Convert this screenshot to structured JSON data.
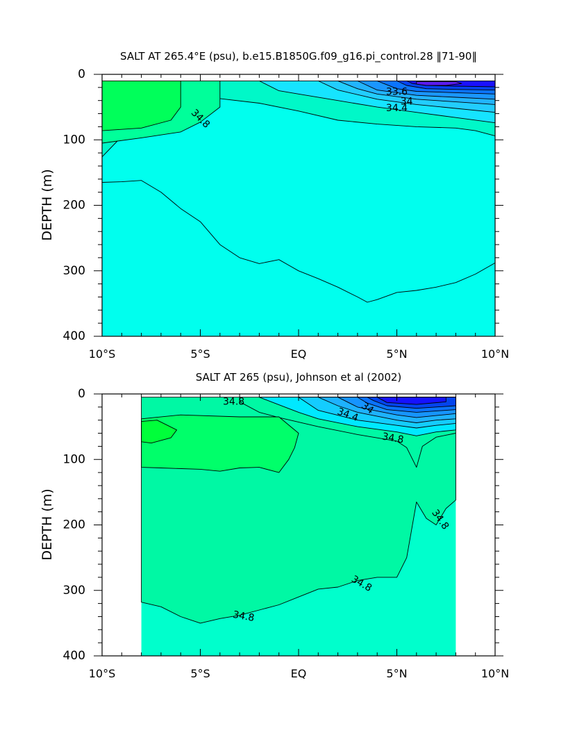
{
  "chart_data": [
    {
      "type": "heatmap",
      "subtype": "filled-contour",
      "title": "SALT AT 265.4°E (psu), b.e15.B1850G.f09_g16.pi_control.28 ‖71-90‖",
      "xlabel": "",
      "ylabel": "DEPTH (m)",
      "xlim": [
        -10,
        10
      ],
      "ylim": [
        400,
        0
      ],
      "x_ticks": [
        -10,
        -5,
        0,
        5,
        10
      ],
      "x_tick_labels": [
        "10°S",
        "5°S",
        "EQ",
        "5°N",
        "10°N"
      ],
      "y_ticks": [
        0,
        100,
        200,
        300,
        400
      ],
      "y_tick_labels": [
        "0",
        "100",
        "200",
        "300",
        "400"
      ],
      "data_x_range": [
        -10,
        10
      ],
      "data_depth_range": [
        10,
        400
      ],
      "background_level": {
        "range": "34.6-34.8",
        "color": "#00ffee"
      },
      "regions": [
        {
          "range": "34.8-35.0",
          "color": "#00f8c8",
          "outline": [
            [
              -10,
              10
            ],
            [
              10,
              10
            ],
            [
              10,
              94
            ],
            [
              9,
              86
            ],
            [
              8,
              82
            ],
            [
              6,
              80
            ],
            [
              4,
              76
            ],
            [
              2,
              70
            ],
            [
              0,
              56
            ],
            [
              -2,
              44
            ],
            [
              -4,
              37
            ],
            [
              -6,
              40
            ],
            [
              -7,
              55
            ],
            [
              -8,
              72
            ],
            [
              -9,
              95
            ],
            [
              -10,
              126
            ]
          ]
        },
        {
          "range": "34.6-34.8",
          "color": "#00ffee",
          "outline": [
            [
              -10,
              165
            ],
            [
              -9,
              164
            ],
            [
              -8,
              162
            ],
            [
              -7,
              180
            ],
            [
              -6,
              205
            ],
            [
              -5,
              225
            ],
            [
              -4,
              260
            ],
            [
              -3,
              280
            ],
            [
              -2,
              289
            ],
            [
              -1,
              283
            ],
            [
              0,
              300
            ],
            [
              1,
              312
            ],
            [
              2,
              325
            ],
            [
              3,
              340
            ],
            [
              3.5,
              348
            ],
            [
              4,
              344
            ],
            [
              5,
              333
            ],
            [
              6,
              330
            ],
            [
              7,
              325
            ],
            [
              8,
              318
            ],
            [
              9,
              305
            ],
            [
              10,
              288
            ],
            [
              10,
              400
            ],
            [
              -10,
              400
            ]
          ]
        },
        {
          "range": "35.0-35.2",
          "color": "#00ff9a",
          "outline": [
            [
              -10,
              10
            ],
            [
              -4,
              10
            ],
            [
              -4,
              50
            ],
            [
              -5,
              73
            ],
            [
              -6,
              88
            ],
            [
              -8,
              97
            ],
            [
              -10,
              105
            ]
          ]
        },
        {
          "range": "35.2-35.4",
          "color": "#00ff5a",
          "outline": [
            [
              -10,
              10
            ],
            [
              -6,
              10
            ],
            [
              -6,
              50
            ],
            [
              -6.5,
              70
            ],
            [
              -8,
              82
            ],
            [
              -10,
              86
            ]
          ]
        },
        {
          "range": "34.4-34.6",
          "color": "#16e4ff",
          "outline": [
            [
              -2,
              10
            ],
            [
              10,
              10
            ],
            [
              10,
              74
            ],
            [
              8,
              66
            ],
            [
              6,
              58
            ],
            [
              4,
              50
            ],
            [
              2,
              40
            ],
            [
              0,
              30
            ],
            [
              -1,
              25
            ]
          ]
        },
        {
          "range": "34.2-34.4",
          "color": "#22cdff",
          "outline": [
            [
              1,
              10
            ],
            [
              10,
              10
            ],
            [
              10,
              58
            ],
            [
              8,
              52
            ],
            [
              6,
              46
            ],
            [
              4,
              38
            ],
            [
              2,
              24
            ]
          ]
        },
        {
          "range": "34.0-34.2",
          "color": "#22b4ff",
          "outline": [
            [
              2,
              10
            ],
            [
              10,
              10
            ],
            [
              10,
              46
            ],
            [
              8,
              42
            ],
            [
              6,
              38
            ],
            [
              4,
              30
            ],
            [
              3,
              22
            ]
          ]
        },
        {
          "range": "33.8-34.0",
          "color": "#1a96ff",
          "outline": [
            [
              3,
              10
            ],
            [
              10,
              10
            ],
            [
              10,
              38
            ],
            [
              8,
              35
            ],
            [
              6,
              32
            ],
            [
              4,
              24
            ]
          ]
        },
        {
          "range": "33.6-33.8",
          "color": "#0b74ff",
          "outline": [
            [
              4,
              10
            ],
            [
              10,
              10
            ],
            [
              10,
              30
            ],
            [
              8,
              28
            ],
            [
              6,
              26
            ],
            [
              5,
              22
            ]
          ]
        },
        {
          "range": "33.4-33.6",
          "color": "#0443f5",
          "outline": [
            [
              5,
              10
            ],
            [
              10,
              10
            ],
            [
              10,
              24
            ],
            [
              8,
              23
            ],
            [
              6.5,
              22
            ],
            [
              5.5,
              17
            ]
          ]
        },
        {
          "range": "33.2-33.4",
          "color": "#1a10ff",
          "outline": [
            [
              5.5,
              10
            ],
            [
              10,
              10
            ],
            [
              10,
              19
            ],
            [
              8,
              18
            ],
            [
              6.5,
              17
            ],
            [
              5.8,
              14
            ]
          ]
        },
        {
          "range": "33.0-33.2",
          "color": "#5a1aee",
          "outline": [
            [
              6,
              11
            ],
            [
              8,
              11
            ],
            [
              8.3,
              14
            ],
            [
              7.5,
              17
            ],
            [
              6.5,
              17
            ],
            [
              6,
              15
            ]
          ]
        }
      ],
      "contour_labels": [
        {
          "text": "34.8",
          "x": -5,
          "depth": 68,
          "angle": 45
        },
        {
          "text": "33.6",
          "x": 5,
          "depth": 27,
          "angle": 0
        },
        {
          "text": "34",
          "x": 5.5,
          "depth": 42,
          "angle": 0
        },
        {
          "text": "34.4",
          "x": 5,
          "depth": 52,
          "angle": 0
        }
      ]
    },
    {
      "type": "heatmap",
      "subtype": "filled-contour",
      "title": "SALT AT 265 (psu), Johnson et al (2002)",
      "xlabel": "",
      "ylabel": "DEPTH (m)",
      "xlim": [
        -10,
        10
      ],
      "ylim": [
        400,
        0
      ],
      "x_ticks": [
        -10,
        -5,
        0,
        5,
        10
      ],
      "x_tick_labels": [
        "10°S",
        "5°S",
        "EQ",
        "5°N",
        "10°N"
      ],
      "y_ticks": [
        0,
        100,
        200,
        300,
        400
      ],
      "y_tick_labels": [
        "0",
        "100",
        "200",
        "300",
        "400"
      ],
      "data_x_range": [
        -8,
        8
      ],
      "data_depth_range": [
        5,
        400
      ],
      "background_level": {
        "range": "34.6-34.8",
        "color": "#00ffcc"
      },
      "regions": [
        {
          "range": "34.8-35.0",
          "color": "#00f8a4",
          "outline": [
            [
              -8,
              5
            ],
            [
              8,
              5
            ],
            [
              8,
              60
            ],
            [
              7,
              66
            ],
            [
              6.3,
              80
            ],
            [
              6,
              112
            ],
            [
              5.5,
              82
            ],
            [
              5,
              72
            ],
            [
              3,
              62
            ],
            [
              1,
              50
            ],
            [
              -1,
              36
            ],
            [
              -2,
              28
            ],
            [
              -3,
              12
            ],
            [
              -3,
              5
            ],
            [
              -3,
              5
            ],
            [
              8,
              5
            ],
            [
              8,
              162
            ],
            [
              7.5,
              175
            ],
            [
              7,
              200
            ],
            [
              6.5,
              190
            ],
            [
              6,
              165
            ],
            [
              5.5,
              250
            ],
            [
              5,
              280
            ],
            [
              4,
              280
            ],
            [
              3,
              285
            ],
            [
              2,
              295
            ],
            [
              1,
              298
            ],
            [
              0,
              310
            ],
            [
              -1,
              322
            ],
            [
              -2,
              330
            ],
            [
              -3,
              338
            ],
            [
              -4,
              343
            ],
            [
              -5,
              350
            ],
            [
              -6,
              340
            ],
            [
              -7,
              325
            ],
            [
              -8,
              318
            ]
          ]
        },
        {
          "range": "35.0-35.2",
          "color": "#00ff6a",
          "outline": [
            [
              -8,
              38
            ],
            [
              -6,
              32
            ],
            [
              -3,
              35
            ],
            [
              -1,
              35
            ],
            [
              0,
              60
            ],
            [
              -0.2,
              82
            ],
            [
              -0.5,
              100
            ],
            [
              -1,
              120
            ],
            [
              -2,
              112
            ],
            [
              -3,
              113
            ],
            [
              -4,
              118
            ],
            [
              -5,
              115
            ],
            [
              -7,
              113
            ],
            [
              -8,
              112
            ]
          ]
        },
        {
          "range": "35.2-35.4",
          "color": "#00ff3a",
          "outline": [
            [
              -8,
              42
            ],
            [
              -7.2,
              40
            ],
            [
              -6.2,
              55
            ],
            [
              -6.5,
              67
            ],
            [
              -7.5,
              75
            ],
            [
              -8,
              73
            ]
          ]
        },
        {
          "range": "34.4-34.6",
          "color": "#00e8ff",
          "outline": [
            [
              -2,
              5
            ],
            [
              8,
              5
            ],
            [
              8,
              55
            ],
            [
              7,
              58
            ],
            [
              6,
              64
            ],
            [
              5,
              58
            ],
            [
              3,
              50
            ],
            [
              1,
              38
            ],
            [
              0,
              28
            ]
          ]
        },
        {
          "range": "34.2-34.4",
          "color": "#14ccff",
          "outline": [
            [
              0,
              5
            ],
            [
              8,
              5
            ],
            [
              8,
              45
            ],
            [
              7,
              48
            ],
            [
              6,
              52
            ],
            [
              5,
              48
            ],
            [
              3,
              40
            ],
            [
              1,
              25
            ]
          ]
        },
        {
          "range": "34.0-34.2",
          "color": "#1eb2ff",
          "outline": [
            [
              1,
              5
            ],
            [
              8,
              5
            ],
            [
              8,
              38
            ],
            [
              7,
              40
            ],
            [
              6,
              44
            ],
            [
              5,
              40
            ],
            [
              3,
              28
            ],
            [
              2,
              18
            ]
          ]
        },
        {
          "range": "33.8-34.0",
          "color": "#1694ff",
          "outline": [
            [
              2,
              5
            ],
            [
              8,
              5
            ],
            [
              8,
              30
            ],
            [
              7,
              33
            ],
            [
              6,
              36
            ],
            [
              5,
              32
            ],
            [
              3,
              20
            ]
          ]
        },
        {
          "range": "33.6-33.8",
          "color": "#0a72ff",
          "outline": [
            [
              3,
              5
            ],
            [
              8,
              5
            ],
            [
              8,
              24
            ],
            [
              6,
              28
            ],
            [
              4.5,
              24
            ],
            [
              3.5,
              14
            ]
          ]
        },
        {
          "range": "33.4-33.6",
          "color": "#0444ee",
          "outline": [
            [
              3.5,
              5
            ],
            [
              8,
              5
            ],
            [
              8,
              18
            ],
            [
              6,
              22
            ],
            [
              4.5,
              18
            ],
            [
              3.8,
              10
            ]
          ]
        },
        {
          "range": "33.2-33.4",
          "color": "#1612ff",
          "outline": [
            [
              4,
              5
            ],
            [
              7.5,
              5
            ],
            [
              7.5,
              12
            ],
            [
              6,
              16
            ],
            [
              4.5,
              13
            ]
          ]
        }
      ],
      "contour_labels": [
        {
          "text": "34.8",
          "x": -3.3,
          "depth": 12,
          "angle": 0
        },
        {
          "text": "34",
          "x": 3.5,
          "depth": 22,
          "angle": 35
        },
        {
          "text": "34.4",
          "x": 2.5,
          "depth": 32,
          "angle": 20
        },
        {
          "text": "34.8",
          "x": 4.8,
          "depth": 68,
          "angle": 10
        },
        {
          "text": "34.8",
          "x": 7.2,
          "depth": 192,
          "angle": 55
        },
        {
          "text": "34.8",
          "x": 3.2,
          "depth": 290,
          "angle": 30
        },
        {
          "text": "34.8",
          "x": -2.8,
          "depth": 340,
          "angle": 10
        }
      ]
    }
  ]
}
